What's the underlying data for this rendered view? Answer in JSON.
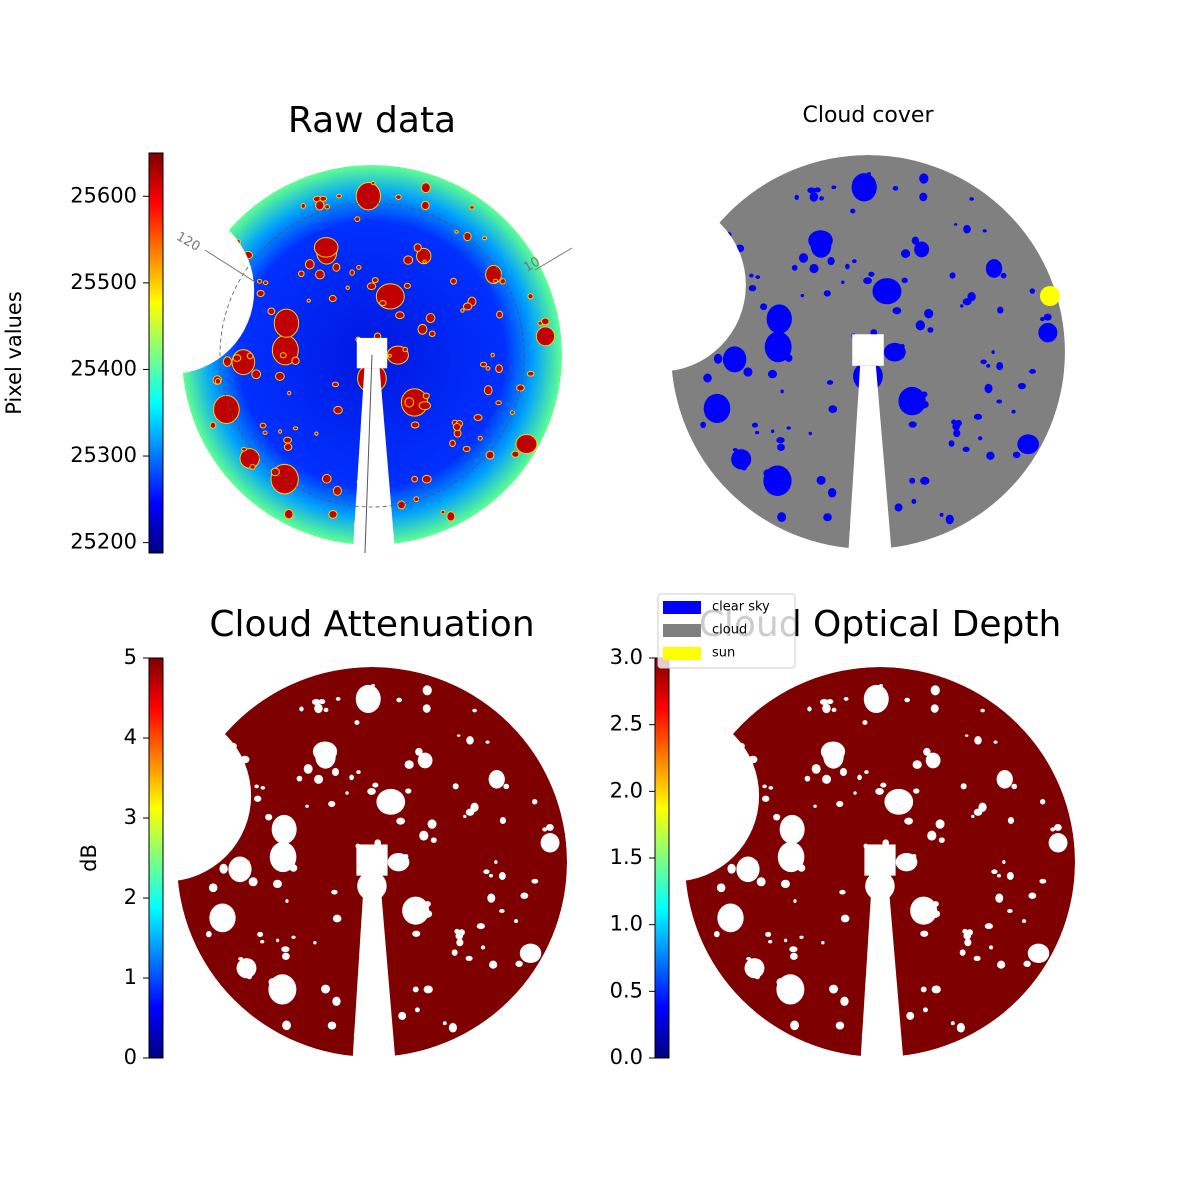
{
  "chart_data": [
    {
      "type": "image",
      "title": "Raw data",
      "annotations": [
        "120",
        "10"
      ],
      "colorbar": {
        "label": "Pixel values",
        "colormap": "jet",
        "lim": [
          25188,
          25650
        ],
        "ticks": [
          25200,
          25300,
          25400,
          25500,
          25600
        ]
      }
    },
    {
      "type": "image",
      "title": "Cloud cover",
      "legend": [
        {
          "name": "clear sky",
          "color": "#0000ff"
        },
        {
          "name": "cloud",
          "color": "#808080"
        },
        {
          "name": "sun",
          "color": "#ffff00"
        }
      ]
    },
    {
      "type": "image",
      "title": "Cloud Attenuation",
      "colorbar": {
        "label": "dB",
        "colormap": "jet",
        "lim": [
          0,
          5
        ],
        "ticks": [
          0,
          1,
          2,
          3,
          4,
          5
        ]
      }
    },
    {
      "type": "image",
      "title": "Cloud Optical Depth",
      "colorbar": {
        "colormap": "jet",
        "lim": [
          0,
          3
        ],
        "ticks": [
          {
            "value": 0,
            "label": "0.0"
          },
          0.5,
          {
            "value": 1,
            "label": "1.0"
          },
          1.5,
          {
            "value": 2,
            "label": "2.0"
          },
          2.5,
          {
            "value": 3,
            "label": "3.0"
          }
        ]
      }
    }
  ]
}
